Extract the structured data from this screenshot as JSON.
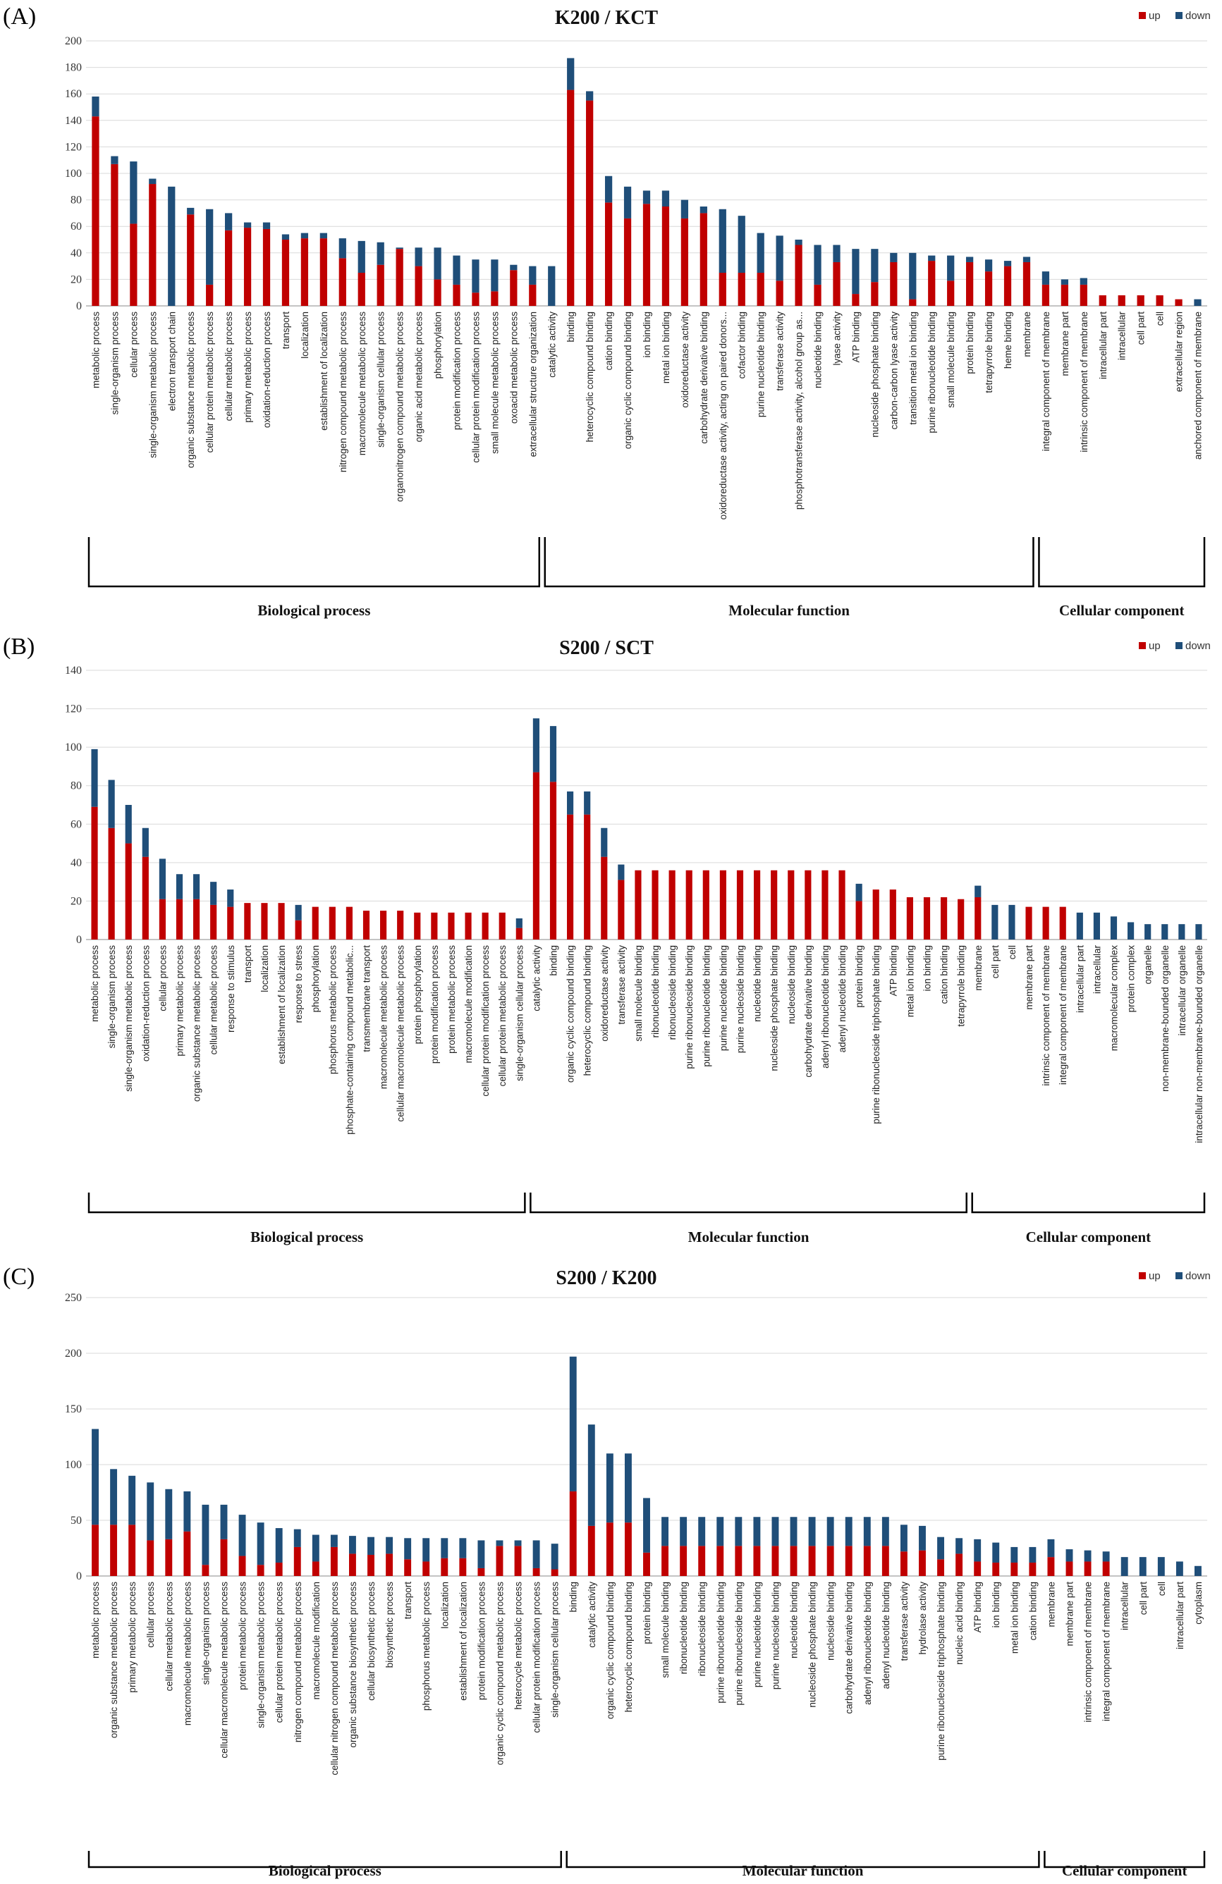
{
  "colors": {
    "up": "#c00000",
    "down": "#1f4e79"
  },
  "chart_data": [
    {
      "panel": "(A)",
      "type": "bar",
      "stacked": true,
      "title": "K200 / KCT",
      "legend": [
        "up",
        "down"
      ],
      "legend_position": "top-right",
      "ylim": [
        0,
        200
      ],
      "yticks": [
        0,
        20,
        40,
        60,
        80,
        100,
        120,
        140,
        160,
        180,
        200
      ],
      "categories": [
        "metabolic process",
        "single-organism process",
        "cellular process",
        "single-organism metabolic process",
        "electron transport chain",
        "organic substance metabolic process",
        "cellular protein metabolic process",
        "cellular metabolic process",
        "primary metabolic process",
        "oxidation-reduction process",
        "transport",
        "localization",
        "establishment of localization",
        "nitrogen compound metabolic process",
        "macromolecule metabolic process",
        "single-organism cellular process",
        "organonitrogen compound metabolic process",
        "organic acid metabolic process",
        "phosphorylation",
        "protein modification process",
        "cellular protein modification process",
        "small molecule metabolic process",
        "oxoacid metabolic process",
        "extracellular structure organization",
        "catalytic activity",
        "binding",
        "heterocyclic compound binding",
        "cation binding",
        "organic cyclic compound binding",
        "ion binding",
        "metal ion binding",
        "oxidoreductase activity",
        "carbohydrate derivative binding",
        "oxidoreductase activity, acting on paired donors...",
        "cofactor binding",
        "purine nucleotide binding",
        "transferase activity",
        "phosphotransferase activity, alcohol group as...",
        "nucleotide binding",
        "lyase activity",
        "ATP binding",
        "nucleoside phosphate binding",
        "carbon-carbon lyase activity",
        "transition metal ion binding",
        "purine ribonucleotide binding",
        "small molecule binding",
        "protein binding",
        "tetrapyrrole binding",
        "heme binding",
        "membrane",
        "integral component of membrane",
        "membrane part",
        "intrinsic component of membrane",
        "intracellular part",
        "intracellular",
        "cell part",
        "cell",
        "extracellular region",
        "anchored component of membrane"
      ],
      "series": [
        {
          "name": "up",
          "values": [
            143,
            107,
            62,
            92,
            0,
            69,
            16,
            57,
            59,
            58,
            50,
            51,
            51,
            36,
            25,
            31,
            43,
            30,
            20,
            16,
            10,
            11,
            27,
            16,
            0,
            163,
            155,
            78,
            66,
            77,
            75,
            66,
            70,
            25,
            25,
            25,
            19,
            46,
            16,
            33,
            9,
            18,
            33,
            5,
            34,
            19,
            33,
            26,
            30,
            33,
            16,
            16,
            16,
            8,
            8,
            8,
            8,
            5,
            0
          ]
        },
        {
          "name": "down",
          "values": [
            15,
            6,
            47,
            4,
            90,
            5,
            57,
            13,
            4,
            5,
            4,
            4,
            4,
            15,
            24,
            17,
            1,
            14,
            24,
            22,
            25,
            24,
            4,
            14,
            30,
            24,
            7,
            20,
            24,
            10,
            12,
            14,
            5,
            48,
            43,
            30,
            34,
            4,
            30,
            13,
            34,
            25,
            7,
            35,
            4,
            19,
            4,
            9,
            4,
            4,
            10,
            4,
            5,
            0,
            0,
            0,
            0,
            0,
            5
          ]
        }
      ],
      "groups": [
        {
          "label": "Biological process",
          "start": 0,
          "end": 23
        },
        {
          "label": "Molecular function",
          "start": 24,
          "end": 49
        },
        {
          "label": "Cellular component",
          "start": 50,
          "end": 58
        }
      ]
    },
    {
      "panel": "(B)",
      "type": "bar",
      "stacked": true,
      "title": "S200 / SCT",
      "legend": [
        "up",
        "down"
      ],
      "legend_position": "top-right",
      "ylim": [
        0,
        140
      ],
      "yticks": [
        0,
        20,
        40,
        60,
        80,
        100,
        120,
        140
      ],
      "categories": [
        "metabolic process",
        "single-organism process",
        "single-organism metabolic process",
        "oxidation-reduction process",
        "cellular process",
        "primary metabolic process",
        "organic substance metabolic process",
        "cellular metabolic process",
        "response to stimulus",
        "transport",
        "localization",
        "establishment of localization",
        "response to stress",
        "phosphorylation",
        "phosphorus metabolic process",
        "phosphate-containing compound metabolic...",
        "transmembrane transport",
        "macromolecule metabolic process",
        "cellular macromolecule metabolic process",
        "protein phosphorylation",
        "protein modification process",
        "protein metabolic process",
        "macromolecule modification",
        "cellular protein modification process",
        "cellular protein metabolic process",
        "single-organism cellular process",
        "catalytic activity",
        "binding",
        "organic cyclic compound binding",
        "heterocyclic compound binding",
        "oxidoreductase activity",
        "transferase activity",
        "small molecule binding",
        "ribonucleotide binding",
        "ribonucleoside binding",
        "purine ribonucleoside binding",
        "purine ribonucleotide binding",
        "purine nucleotide binding",
        "purine nucleoside binding",
        "nucleotide binding",
        "nucleoside phosphate binding",
        "nucleoside binding",
        "carbohydrate derivative binding",
        "adenyl ribonucleotide binding",
        "adenyl nucleotide binding",
        "protein binding",
        "purine ribonucleoside triphosphate binding",
        "ATP binding",
        "metal ion binding",
        "ion binding",
        "cation binding",
        "tetrapyrrole binding",
        "membrane",
        "cell part",
        "cell",
        "membrane part",
        "intrinsic component of membrane",
        "integral component of membrane",
        "intracellular part",
        "intracellular",
        "macromolecular complex",
        "protein complex",
        "organelle",
        "non-membrane-bounded organelle",
        "intracellular organelle",
        "intracellular non-membrane-bounded organelle"
      ],
      "series": [
        {
          "name": "up",
          "values": [
            69,
            58,
            50,
            43,
            21,
            21,
            21,
            18,
            17,
            19,
            19,
            19,
            10,
            17,
            17,
            17,
            15,
            15,
            15,
            14,
            14,
            14,
            14,
            14,
            14,
            6,
            87,
            82,
            65,
            65,
            43,
            31,
            36,
            36,
            36,
            36,
            36,
            36,
            36,
            36,
            36,
            36,
            36,
            36,
            36,
            20,
            26,
            26,
            22,
            22,
            22,
            21,
            22,
            0,
            0,
            17,
            17,
            17,
            0,
            0,
            0,
            0,
            0,
            0,
            0,
            0
          ]
        },
        {
          "name": "down",
          "values": [
            30,
            25,
            20,
            15,
            21,
            13,
            13,
            12,
            9,
            0,
            0,
            0,
            8,
            0,
            0,
            0,
            0,
            0,
            0,
            0,
            0,
            0,
            0,
            0,
            0,
            5,
            28,
            29,
            12,
            12,
            15,
            8,
            0,
            0,
            0,
            0,
            0,
            0,
            0,
            0,
            0,
            0,
            0,
            0,
            0,
            9,
            0,
            0,
            0,
            0,
            0,
            0,
            6,
            18,
            18,
            0,
            0,
            0,
            14,
            14,
            12,
            9,
            8,
            8,
            8,
            8
          ]
        }
      ],
      "groups": [
        {
          "label": "Biological process",
          "start": 0,
          "end": 25
        },
        {
          "label": "Molecular function",
          "start": 26,
          "end": 51
        },
        {
          "label": "Cellular component",
          "start": 52,
          "end": 65
        }
      ]
    },
    {
      "panel": "(C)",
      "type": "bar",
      "stacked": true,
      "title": "S200 / K200",
      "legend": [
        "up",
        "down"
      ],
      "legend_position": "top-right",
      "ylim": [
        0,
        250
      ],
      "yticks": [
        0,
        50,
        100,
        150,
        200,
        250
      ],
      "categories": [
        "metabolic process",
        "organic substance metabolic process",
        "primary metabolic process",
        "cellular process",
        "cellular metabolic process",
        "macromolecule metabolic process",
        "single-organism process",
        "cellular macromolecule metabolic process",
        "protein metabolic process",
        "single-organism metabolic process",
        "cellular protein metabolic process",
        "nitrogen compound metabolic process",
        "macromolecule modification",
        "cellular nitrogen compound metabolic process",
        "organic substance biosynthetic process",
        "cellular biosynthetic process",
        "biosynthetic process",
        "transport",
        "phosphorus metabolic process",
        "localization",
        "establishment of localization",
        "protein modification process",
        "organic cyclic compound metabolic process",
        "heterocycle metabolic process",
        "cellular protein modification process",
        "single-organism cellular process",
        "binding",
        "catalytic activity",
        "organic cyclic compound binding",
        "heterocyclic compound binding",
        "protein binding",
        "small molecule binding",
        "ribonucleotide binding",
        "ribonucleoside binding",
        "purine ribonucleotide binding",
        "purine ribonucleoside binding",
        "purine nucleotide binding",
        "purine nucleoside binding",
        "nucleotide binding",
        "nucleoside phosphate binding",
        "nucleoside binding",
        "carbohydrate derivative binding",
        "adenyl ribonucleotide binding",
        "adenyl nucleotide binding",
        "transferase activity",
        "hydrolase activity",
        "purine ribonucleoside triphosphate binding",
        "nucleic acid binding",
        "ATP binding",
        "ion binding",
        "metal ion binding",
        "cation binding",
        "membrane",
        "membrane part",
        "intrinsic component of membrane",
        "integral component of membrane",
        "intracellular",
        "cell part",
        "cell",
        "intracellular part",
        "cytoplasm"
      ],
      "series": [
        {
          "name": "up",
          "values": [
            46,
            46,
            46,
            32,
            33,
            40,
            10,
            33,
            18,
            10,
            12,
            26,
            13,
            26,
            20,
            19,
            20,
            15,
            13,
            16,
            16,
            7,
            27,
            27,
            7,
            6,
            76,
            45,
            48,
            48,
            21,
            27,
            27,
            27,
            27,
            27,
            27,
            27,
            27,
            27,
            27,
            27,
            27,
            27,
            22,
            23,
            15,
            20,
            13,
            12,
            12,
            12,
            17,
            13,
            13,
            13,
            0,
            0,
            0,
            0,
            0
          ]
        },
        {
          "name": "down",
          "values": [
            86,
            50,
            44,
            52,
            45,
            36,
            54,
            31,
            37,
            38,
            31,
            16,
            24,
            11,
            16,
            16,
            15,
            19,
            21,
            18,
            18,
            25,
            5,
            5,
            25,
            23,
            121,
            91,
            62,
            62,
            49,
            26,
            26,
            26,
            26,
            26,
            26,
            26,
            26,
            26,
            26,
            26,
            26,
            26,
            24,
            22,
            20,
            14,
            20,
            18,
            14,
            14,
            16,
            11,
            10,
            9,
            17,
            17,
            17,
            13,
            9
          ]
        }
      ],
      "groups": [
        {
          "label": "Biological process",
          "start": 0,
          "end": 25
        },
        {
          "label": "Molecular function",
          "start": 26,
          "end": 51
        },
        {
          "label": "Cellular component",
          "start": 52,
          "end": 60
        }
      ]
    }
  ]
}
